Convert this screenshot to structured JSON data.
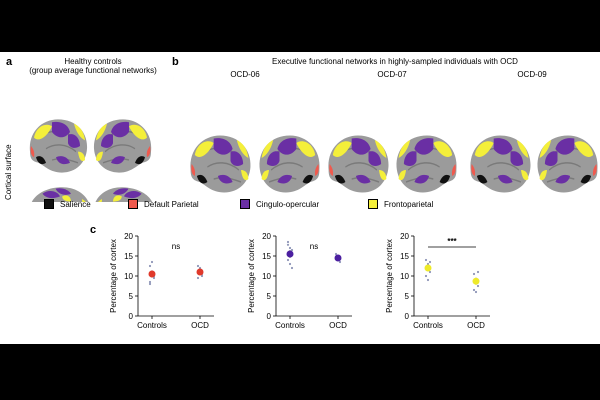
{
  "panel_a": {
    "letter": "a",
    "title_line1": "Healthy controls",
    "title_line2": "(group average functional networks)",
    "side_label": "Cortical surface"
  },
  "panel_b": {
    "letter": "b",
    "title": "Executive functional networks in highly-sampled individuals with OCD",
    "subjects": [
      "OCD-06",
      "OCD-07",
      "OCD-09"
    ]
  },
  "legend": [
    {
      "label": "Salience",
      "color": "#111111"
    },
    {
      "label": "Default Parietal",
      "color": "#ef5a4e"
    },
    {
      "label": "Cingulo-opercular",
      "color": "#6a2fa4"
    },
    {
      "label": "Frontoparietal",
      "color": "#f4ef3a"
    }
  ],
  "colors": {
    "brain": "#9b9b9b",
    "brain_sulci": "#6e6e6e",
    "salience": "#111111",
    "default_parietal": "#ef5a4e",
    "cingulo_opercular": "#6a2fa4",
    "frontoparietal": "#f4ef3a"
  },
  "panel_c": {
    "letter": "c"
  },
  "chart_data": [
    {
      "type": "scatter",
      "title": "",
      "ylabel": "Percentage of cortex",
      "xlabel": "",
      "categories": [
        "Controls",
        "OCD"
      ],
      "ylim": [
        0,
        20
      ],
      "yticks": [
        0,
        5,
        10,
        15,
        20
      ],
      "color": "#e0392b",
      "means": [
        10.5,
        11.0
      ],
      "errors": [
        0.9,
        0.8
      ],
      "points": [
        [
          12.5,
          11.0,
          9.5,
          8.5,
          13.5,
          10.0,
          8.0
        ],
        [
          12.5,
          11.5,
          10.0,
          9.5,
          12.0,
          10.5
        ]
      ],
      "significance": "ns"
    },
    {
      "type": "scatter",
      "title": "",
      "ylabel": "Percentage of cortex",
      "xlabel": "",
      "categories": [
        "Controls",
        "OCD"
      ],
      "ylim": [
        0,
        20
      ],
      "yticks": [
        0,
        5,
        10,
        15,
        20
      ],
      "color": "#4b1fa0",
      "means": [
        15.5,
        14.5
      ],
      "errors": [
        1.0,
        0.8
      ],
      "points": [
        [
          18.5,
          17.0,
          16.5,
          14.0,
          13.0,
          12.0,
          17.8
        ],
        [
          15.5,
          14.0,
          13.5
        ]
      ],
      "significance": "ns"
    },
    {
      "type": "scatter",
      "title": "",
      "ylabel": "Percentage of cortex",
      "xlabel": "",
      "categories": [
        "Controls",
        "OCD"
      ],
      "ylim": [
        0,
        20
      ],
      "yticks": [
        0,
        5,
        10,
        15,
        20
      ],
      "color": "#eeea2a",
      "means": [
        12.0,
        8.7
      ],
      "errors": [
        0.8,
        0.9
      ],
      "points": [
        [
          14.0,
          13.0,
          11.0,
          10.0,
          9.0,
          13.5
        ],
        [
          10.5,
          9.0,
          7.5,
          6.5,
          6.0,
          11.0
        ]
      ],
      "significance": "***"
    }
  ]
}
